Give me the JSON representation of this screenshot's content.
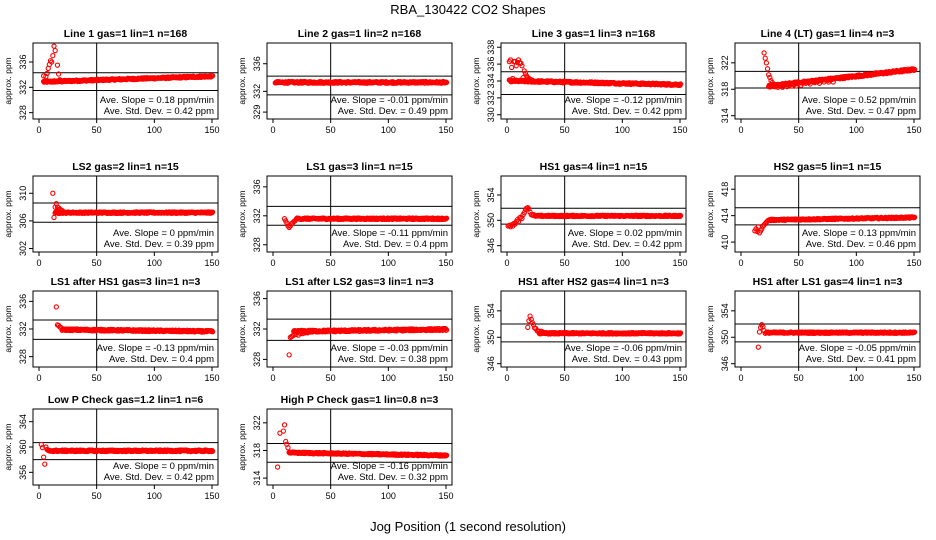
{
  "figure": {
    "title": "RBA_130422  CO2 Shapes",
    "xlabel": "Jog Position (1 second resolution)"
  },
  "colors": {
    "points": "#ff0000",
    "axes": "#000000"
  },
  "chart_data": [
    {
      "type": "scatter",
      "title": "Line 1 gas=1 lin=1 n=168",
      "ylabel": "approx. ppm",
      "xlim": [
        0,
        150
      ],
      "ylim": [
        327,
        339
      ],
      "xticks": [
        0,
        50,
        100,
        150
      ],
      "yticks": [
        328,
        332,
        336
      ],
      "vline": 50,
      "hlines": [
        331.5,
        334.3
      ],
      "start": 4,
      "level": 333.3,
      "noise": 0.12,
      "slope_val": 0.006,
      "transient": [
        [
          4,
          333.8
        ],
        [
          6,
          333.7
        ],
        [
          7,
          334.2
        ],
        [
          8,
          335
        ],
        [
          9,
          335.6
        ],
        [
          10,
          336.2
        ],
        [
          11,
          336
        ],
        [
          12,
          337
        ],
        [
          13,
          338.5
        ],
        [
          14,
          337.8
        ],
        [
          16,
          335.5
        ],
        [
          17,
          334.1
        ],
        [
          18,
          333.2
        ],
        [
          19,
          333.1
        ]
      ],
      "annotations": [
        "Ave. Slope = 0.18 ppm/min",
        "Ave. Std. Dev. = 0.42 ppm"
      ]
    },
    {
      "type": "scatter",
      "title": "Line 2 gas=1 lin=2 n=168",
      "ylabel": "approx. ppm",
      "xlim": [
        0,
        150
      ],
      "ylim": [
        328,
        339
      ],
      "xticks": [
        0,
        50,
        100,
        150
      ],
      "yticks": [
        329,
        332,
        336
      ],
      "vline": 50,
      "hlines": [
        331.5,
        334.2
      ],
      "start": 2,
      "level": 333.3,
      "noise": 0.12,
      "slope_val": 0,
      "transient": [],
      "annotations": [
        "Ave. Slope = -0.01 ppm/min",
        "Ave. Std. Dev. = 0.49 ppm"
      ]
    },
    {
      "type": "scatter",
      "title": "Line 3 gas=1 lin=3 n=168",
      "ylabel": "approx. ppm",
      "xlim": [
        0,
        150
      ],
      "ylim": [
        329.5,
        338.5
      ],
      "xticks": [
        0,
        50,
        100,
        150
      ],
      "yticks": [
        330,
        332,
        334,
        336,
        338
      ],
      "vline": 50,
      "hlines": [
        332.4,
        335.1
      ],
      "start": 2,
      "level": 333.8,
      "noise": 0.1,
      "slope_val": -0.003,
      "transient": [
        [
          2,
          336.3
        ],
        [
          3,
          336.5
        ],
        [
          4,
          335.6
        ],
        [
          5,
          334.3
        ],
        [
          6,
          336.3
        ],
        [
          7,
          336.3
        ],
        [
          8,
          335.8
        ],
        [
          9,
          336.2
        ],
        [
          10,
          336.5
        ],
        [
          11,
          336.2
        ],
        [
          12,
          336.1
        ],
        [
          13,
          335.8
        ],
        [
          14,
          334.4
        ],
        [
          15,
          335.2
        ],
        [
          16,
          334.9
        ],
        [
          17,
          334.6
        ],
        [
          18,
          334.4
        ],
        [
          19,
          334.3
        ],
        [
          20,
          334.2
        ],
        [
          22,
          334.1
        ]
      ],
      "annotations": [
        "Ave. Slope = -0.12 ppm/min",
        "Ave. Std. Dev. = 0.42 ppm"
      ]
    },
    {
      "type": "scatter",
      "title": "Line 4 (LT) gas=1 lin=4 n=3",
      "ylabel": "approx. ppm",
      "xlim": [
        0,
        150
      ],
      "ylim": [
        313.5,
        325
      ],
      "xticks": [
        0,
        50,
        100,
        150
      ],
      "yticks": [
        314,
        318,
        322
      ],
      "vline": 50,
      "hlines": [
        318.2,
        320.7
      ],
      "start": 24,
      "level": 319.5,
      "noise": 0.15,
      "slope_val": 0.02,
      "transient": [
        [
          20,
          323.5
        ],
        [
          21,
          322.7
        ],
        [
          22,
          322
        ],
        [
          23,
          321.1
        ],
        [
          24,
          320.2
        ],
        [
          25,
          319.8
        ],
        [
          26,
          319.3
        ],
        [
          27,
          319
        ],
        [
          28,
          318.6
        ],
        [
          29,
          318.4
        ],
        [
          30,
          318.4
        ],
        [
          32,
          318.3
        ],
        [
          34,
          318.5
        ],
        [
          36,
          318.3
        ],
        [
          38,
          318.7
        ],
        [
          40,
          318.4
        ],
        [
          42,
          318.6
        ],
        [
          44,
          318.5
        ],
        [
          46,
          318.7
        ],
        [
          48,
          318.5
        ],
        [
          52,
          318.6
        ],
        [
          56,
          318.9
        ],
        [
          60,
          318.8
        ],
        [
          64,
          319
        ],
        [
          68,
          318.9
        ],
        [
          72,
          319.1
        ],
        [
          76,
          319.1
        ],
        [
          80,
          319.1
        ]
      ],
      "annotations": [
        "Ave. Slope = 0.52 ppm/min",
        "Ave. Std. Dev. = 0.47 ppm"
      ]
    },
    {
      "type": "scatter",
      "title": "LS2 gas=2 lin=1 n=15",
      "ylabel": "approx. ppm",
      "xlim": [
        0,
        150
      ],
      "ylim": [
        301.5,
        312.5
      ],
      "xticks": [
        0,
        50,
        100,
        150
      ],
      "yticks": [
        302,
        306,
        310
      ],
      "vline": 50,
      "hlines": [
        305.8,
        308.6
      ],
      "start": 14,
      "level": 307.2,
      "noise": 0.1,
      "slope_val": 0,
      "transient": [
        [
          12,
          310
        ],
        [
          13,
          306.5
        ],
        [
          14,
          308
        ],
        [
          15,
          308.5
        ],
        [
          16,
          308
        ],
        [
          17,
          307.9
        ],
        [
          18,
          307.7
        ],
        [
          19,
          307.6
        ],
        [
          20,
          307.5
        ]
      ],
      "annotations": [
        "Ave. Slope = 0 ppm/min",
        "Ave. Std. Dev. = 0.39 ppm"
      ]
    },
    {
      "type": "scatter",
      "title": "LS1 gas=3 lin=1 n=15",
      "ylabel": "approx. ppm",
      "xlim": [
        0,
        150
      ],
      "ylim": [
        327,
        337.5
      ],
      "xticks": [
        0,
        50,
        100,
        150
      ],
      "yticks": [
        328,
        332,
        336
      ],
      "vline": 50,
      "hlines": [
        330.7,
        333.3
      ],
      "start": 20,
      "level": 331.6,
      "noise": 0.1,
      "slope_val": 0,
      "transient": [
        [
          10,
          331.6
        ],
        [
          11,
          331.3
        ],
        [
          12,
          331
        ],
        [
          13,
          330.6
        ],
        [
          14,
          330.4
        ],
        [
          15,
          330.6
        ],
        [
          16,
          330.9
        ],
        [
          17,
          331
        ],
        [
          18,
          331.2
        ],
        [
          19,
          331.3
        ]
      ],
      "annotations": [
        "Ave. Slope = -0.11 ppm/min",
        "Ave. Std. Dev. = 0.4 ppm"
      ]
    },
    {
      "type": "scatter",
      "title": "HS1 gas=4 lin=1 n=15",
      "ylabel": "approx. ppm",
      "xlim": [
        0,
        150
      ],
      "ylim": [
        345,
        357
      ],
      "xticks": [
        0,
        50,
        100,
        150
      ],
      "yticks": [
        346,
        350,
        354
      ],
      "vline": 50,
      "hlines": [
        349.4,
        351.9
      ],
      "start": 24,
      "level": 350.7,
      "noise": 0.1,
      "slope_val": 0,
      "transient": [
        [
          1,
          349.1
        ],
        [
          2,
          349.2
        ],
        [
          3,
          349
        ],
        [
          4,
          349.3
        ],
        [
          5,
          349.1
        ],
        [
          6,
          349.5
        ],
        [
          7,
          349.4
        ],
        [
          8,
          349.8
        ],
        [
          9,
          350.1
        ],
        [
          10,
          349.8
        ],
        [
          11,
          350.4
        ],
        [
          12,
          350.5
        ],
        [
          13,
          350.3
        ],
        [
          14,
          350.9
        ],
        [
          15,
          351.2
        ],
        [
          16,
          351.7
        ],
        [
          17,
          351.9
        ],
        [
          18,
          352
        ],
        [
          19,
          351.8
        ],
        [
          20,
          351.3
        ],
        [
          21,
          350.9
        ],
        [
          22,
          350.8
        ],
        [
          23,
          350.9
        ]
      ],
      "annotations": [
        "Ave. Slope = 0.02 ppm/min",
        "Ave. Std. Dev. = 0.42 ppm"
      ]
    },
    {
      "type": "scatter",
      "title": "HS2 gas=5 lin=1 n=15",
      "ylabel": "approx. ppm",
      "xlim": [
        0,
        150
      ],
      "ylim": [
        408.5,
        420
      ],
      "xticks": [
        0,
        50,
        100,
        150
      ],
      "yticks": [
        410,
        414,
        418
      ],
      "vline": 50,
      "hlines": [
        412.6,
        415.2
      ],
      "start": 24,
      "level": 413.5,
      "noise": 0.1,
      "slope_val": 0.003,
      "transient": [
        [
          12,
          411.7
        ],
        [
          13,
          412
        ],
        [
          14,
          411.6
        ],
        [
          15,
          412.3
        ],
        [
          16,
          411.4
        ],
        [
          17,
          411.7
        ],
        [
          18,
          412
        ],
        [
          19,
          412.4
        ],
        [
          20,
          412.6
        ],
        [
          21,
          412.8
        ],
        [
          22,
          413
        ],
        [
          23,
          413.2
        ]
      ],
      "annotations": [
        "Ave. Slope = 0.13 ppm/min",
        "Ave. Std. Dev. = 0.46 ppm"
      ]
    },
    {
      "type": "scatter",
      "title": "LS1 after HS1 gas=3 lin=1 n=3",
      "ylabel": "approx. ppm",
      "xlim": [
        0,
        150
      ],
      "ylim": [
        326.5,
        337.5
      ],
      "xticks": [
        0,
        50,
        100,
        150
      ],
      "yticks": [
        328,
        332,
        336
      ],
      "vline": 50,
      "hlines": [
        330.5,
        333.3
      ],
      "start": 20,
      "level": 331.8,
      "noise": 0.12,
      "slope_val": -0.002,
      "transient": [
        [
          15,
          335.2
        ],
        [
          16,
          332.6
        ],
        [
          17,
          332.5
        ],
        [
          18,
          332.3
        ],
        [
          19,
          332.2
        ]
      ],
      "annotations": [
        "Ave. Slope = -0.13 ppm/min",
        "Ave. Std. Dev. = 0.4 ppm"
      ]
    },
    {
      "type": "scatter",
      "title": "LS1 after LS2 gas=3 lin=1 n=3",
      "ylabel": "approx. ppm",
      "xlim": [
        0,
        150
      ],
      "ylim": [
        327,
        337
      ],
      "xticks": [
        0,
        50,
        100,
        150
      ],
      "yticks": [
        328,
        332,
        336
      ],
      "vline": 50,
      "hlines": [
        330.5,
        333.3
      ],
      "start": 18,
      "level": 331.8,
      "noise": 0.12,
      "slope_val": 0.002,
      "transient": [
        [
          14,
          328.6
        ],
        [
          15,
          330.9
        ],
        [
          16,
          331
        ],
        [
          17,
          331.1
        ],
        [
          18,
          331.2
        ],
        [
          20,
          331.3
        ],
        [
          22,
          331.2
        ],
        [
          24,
          331.4
        ],
        [
          26,
          331.4
        ],
        [
          28,
          331.5
        ],
        [
          30,
          331.5
        ],
        [
          32,
          331.6
        ],
        [
          34,
          331.6
        ]
      ],
      "annotations": [
        "Ave. Slope = -0.03 ppm/min",
        "Ave. Std. Dev. = 0.38 ppm"
      ]
    },
    {
      "type": "scatter",
      "title": "HS1 after HS2 gas=4 lin=1 n=3",
      "ylabel": "approx. ppm",
      "xlim": [
        0,
        150
      ],
      "ylim": [
        345.5,
        357
      ],
      "xticks": [
        0,
        50,
        100,
        150
      ],
      "yticks": [
        346,
        350,
        354
      ],
      "vline": 50,
      "hlines": [
        349.3,
        352
      ],
      "start": 28,
      "level": 350.6,
      "noise": 0.1,
      "slope_val": 0,
      "transient": [
        [
          18,
          351.5
        ],
        [
          19,
          352.5
        ],
        [
          20,
          353.2
        ],
        [
          21,
          352.7
        ],
        [
          22,
          352.2
        ],
        [
          23,
          351.9
        ],
        [
          24,
          351.4
        ],
        [
          25,
          351.3
        ],
        [
          26,
          351
        ],
        [
          27,
          350.9
        ],
        [
          28,
          350.9
        ],
        [
          30,
          350.9
        ],
        [
          32,
          350.6
        ],
        [
          34,
          350.7
        ]
      ],
      "annotations": [
        "Ave. Slope = -0.06 ppm/min",
        "Ave. Std. Dev. = 0.43 ppm"
      ]
    },
    {
      "type": "scatter",
      "title": "HS1 after LS1 gas=4 lin=1 n=3",
      "ylabel": "approx. ppm",
      "xlim": [
        0,
        150
      ],
      "ylim": [
        345.5,
        357
      ],
      "xticks": [
        0,
        50,
        100,
        150
      ],
      "yticks": [
        346,
        350,
        354
      ],
      "vline": 50,
      "hlines": [
        349.3,
        352
      ],
      "start": 22,
      "level": 350.7,
      "noise": 0.1,
      "slope_val": 0,
      "transient": [
        [
          15,
          348.5
        ],
        [
          16,
          350.8
        ],
        [
          17,
          351.5
        ],
        [
          18,
          351.9
        ],
        [
          19,
          351.6
        ],
        [
          20,
          351
        ],
        [
          21,
          350.6
        ]
      ],
      "annotations": [
        "Ave. Slope = -0.05 ppm/min",
        "Ave. Std. Dev. = 0.41 ppm"
      ]
    },
    {
      "type": "scatter",
      "title": "Low P Check gas=1.2 lin=1 n=6",
      "ylabel": "approx. ppm",
      "xlim": [
        0,
        150
      ],
      "ylim": [
        354,
        366
      ],
      "xticks": [
        0,
        50,
        100,
        150
      ],
      "yticks": [
        356,
        360,
        364
      ],
      "vline": 50,
      "hlines": [
        358,
        360.7
      ],
      "start": 8,
      "level": 359.4,
      "noise": 0.12,
      "slope_val": 0,
      "transient": [
        [
          2,
          360.4
        ],
        [
          3,
          359.9
        ],
        [
          4,
          358.4
        ],
        [
          5,
          357.3
        ],
        [
          6,
          360
        ],
        [
          7,
          359.6
        ]
      ],
      "annotations": [
        "Ave. Slope = 0 ppm/min",
        "Ave. Std. Dev. = 0.42 ppm"
      ]
    },
    {
      "type": "scatter",
      "title": "High P Check gas=1 lin=0.8 n=3",
      "ylabel": "approx. ppm",
      "xlim": [
        0,
        150
      ],
      "ylim": [
        313,
        324
      ],
      "xticks": [
        0,
        50,
        100,
        150
      ],
      "yticks": [
        314,
        318,
        322
      ],
      "vline": 50,
      "hlines": [
        316.3,
        319
      ],
      "start": 14,
      "level": 317.5,
      "noise": 0.1,
      "slope_val": -0.003,
      "transient": [
        [
          4,
          315.6
        ],
        [
          6,
          320.5
        ],
        [
          9,
          320.8
        ],
        [
          10,
          321.7
        ],
        [
          11,
          319.3
        ],
        [
          12,
          318.9
        ],
        [
          13,
          318.4
        ]
      ],
      "annotations": [
        "Ave. Slope = -0.16 ppm/min",
        "Ave. Std. Dev. = 0.32 ppm"
      ]
    }
  ]
}
